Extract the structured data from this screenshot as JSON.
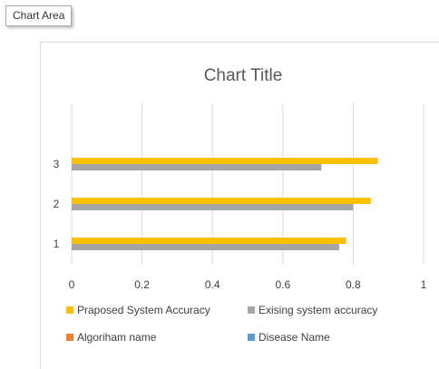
{
  "tooltip": {
    "label": "Chart Area"
  },
  "chart_data": {
    "type": "bar",
    "orientation": "horizontal",
    "title": "Chart Title",
    "categories": [
      "1",
      "2",
      "3"
    ],
    "series": [
      {
        "name": "Praposed System Accuracy",
        "color": "#ffc000",
        "values": [
          0.78,
          0.85,
          0.87
        ]
      },
      {
        "name": "Exising system accuracy",
        "color": "#a5a5a5",
        "values": [
          0.76,
          0.8,
          0.71
        ]
      },
      {
        "name": "Algoriham name",
        "color": "#ed7d31",
        "values": [
          0,
          0,
          0
        ]
      },
      {
        "name": "Disease Name",
        "color": "#5b9bd5",
        "values": [
          0,
          0,
          0
        ]
      }
    ],
    "xlim": [
      0,
      1
    ],
    "xticks": [
      "0",
      "0.2",
      "0.4",
      "0.6",
      "0.8",
      "1"
    ],
    "grid": true,
    "legend_position": "bottom"
  }
}
